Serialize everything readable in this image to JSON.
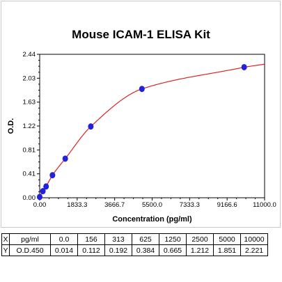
{
  "chart_data": {
    "type": "scatter",
    "title": "Mouse ICAM-1 ELISA Kit",
    "xlabel": "Concentration (pg/ml)",
    "ylabel": "O.D.",
    "xlim": [
      0,
      11000
    ],
    "ylim": [
      0,
      2.44
    ],
    "x_ticks": [
      "0.00",
      "1833.3",
      "3666.7",
      "5500.0",
      "7333.3",
      "9166.6",
      "11000.0"
    ],
    "y_ticks": [
      "0.00",
      "0.41",
      "0.81",
      "1.22",
      "1.63",
      "2.03",
      "2.44"
    ],
    "grid": false,
    "legend": "none",
    "series": [
      {
        "x": [
          0,
          156,
          313,
          625,
          1250,
          2500,
          5000,
          10000
        ],
        "y": [
          0.014,
          0.112,
          0.192,
          0.384,
          0.665,
          1.212,
          1.851,
          2.221
        ]
      }
    ],
    "point_color": "#2222dd",
    "curve_color": "#dd2222"
  },
  "table": {
    "row_x": [
      "X",
      "pg/ml",
      "0.0",
      "156",
      "313",
      "625",
      "1250",
      "2500",
      "5000",
      "10000"
    ],
    "row_y": [
      "Y",
      "O.D.450",
      "0.014",
      "0.112",
      "0.192",
      "0.384",
      "0.665",
      "1.212",
      "1.851",
      "2.221"
    ]
  }
}
